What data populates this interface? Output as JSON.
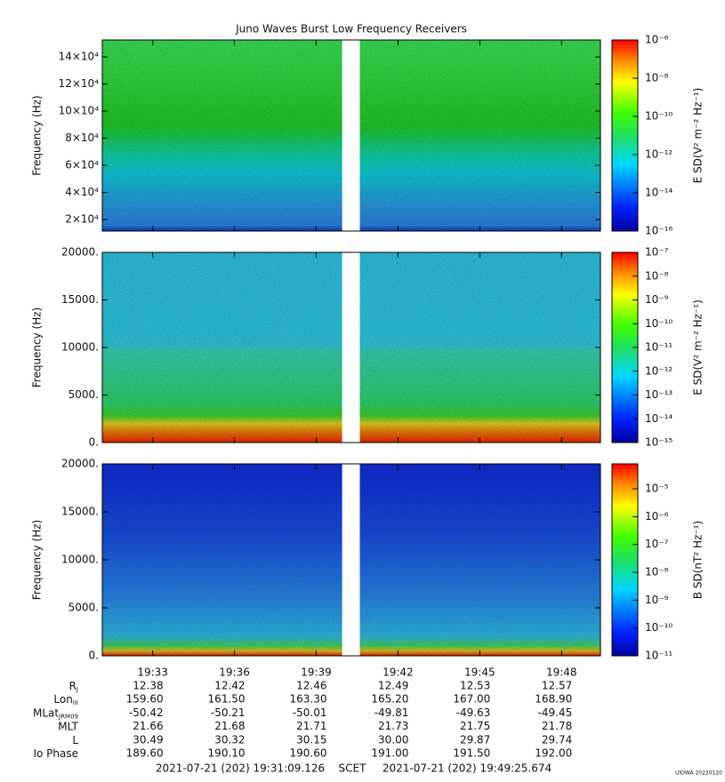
{
  "chart_data": {
    "type": "spectrogram",
    "title": "Juno Waves Burst Low Frequency Receivers",
    "xlim": [
      70269.126,
      71365.674
    ],
    "xticks": [
      {
        "value": 70380,
        "label": "19:33"
      },
      {
        "value": 70560,
        "label": "19:36"
      },
      {
        "value": 70740,
        "label": "19:39"
      },
      {
        "value": 70920,
        "label": "19:42"
      },
      {
        "value": 71100,
        "label": "19:45"
      },
      {
        "value": 71280,
        "label": "19:48"
      }
    ],
    "gap": [
      70797,
      70836
    ],
    "panels": [
      {
        "ylabel": "Frequency (Hz)",
        "ylim": [
          11500,
          152500
        ],
        "yticks": [
          {
            "value": 20000,
            "label": "2×10⁴"
          },
          {
            "value": 40000,
            "label": "4×10⁴"
          },
          {
            "value": 60000,
            "label": "6×10⁴"
          },
          {
            "value": 80000,
            "label": "8×10⁴"
          },
          {
            "value": 100000,
            "label": "10×10⁴"
          },
          {
            "value": 120000,
            "label": "12×10⁴"
          },
          {
            "value": 140000,
            "label": "14×10⁴"
          }
        ],
        "clabel": "E SD(V² m⁻² Hz⁻¹)",
        "clim": [
          1e-16,
          1e-06
        ],
        "clog": true,
        "cticks": [
          {
            "value": 1e-06,
            "label": "10⁻⁶"
          },
          {
            "value": 1e-08,
            "label": "10⁻⁸"
          },
          {
            "value": 1e-10,
            "label": "10⁻¹⁰"
          },
          {
            "value": 1e-12,
            "label": "10⁻¹²"
          },
          {
            "value": 1e-14,
            "label": "10⁻¹⁴"
          },
          {
            "value": 1e-16,
            "label": "10⁻¹⁶"
          }
        ]
      },
      {
        "ylabel": "Frequency (Hz)",
        "ylim": [
          0,
          20000
        ],
        "yticks": [
          {
            "value": 0,
            "label": "0."
          },
          {
            "value": 5000,
            "label": "5000."
          },
          {
            "value": 10000,
            "label": "10000."
          },
          {
            "value": 15000,
            "label": "15000."
          },
          {
            "value": 20000,
            "label": "20000."
          }
        ],
        "clabel": "E SD(V² m⁻² Hz⁻¹)",
        "clim": [
          1e-15,
          1e-07
        ],
        "clog": true,
        "cticks": [
          {
            "value": 1e-07,
            "label": "10⁻⁷"
          },
          {
            "value": 1e-08,
            "label": "10⁻⁸"
          },
          {
            "value": 1e-09,
            "label": "10⁻⁹"
          },
          {
            "value": 1e-10,
            "label": "10⁻¹⁰"
          },
          {
            "value": 1e-11,
            "label": "10⁻¹¹"
          },
          {
            "value": 1e-12,
            "label": "10⁻¹²"
          },
          {
            "value": 1e-13,
            "label": "10⁻¹³"
          },
          {
            "value": 1e-14,
            "label": "10⁻¹⁴"
          },
          {
            "value": 1e-15,
            "label": "10⁻¹⁵"
          }
        ]
      },
      {
        "ylabel": "Frequency (Hz)",
        "ylim": [
          0,
          20000
        ],
        "yticks": [
          {
            "value": 0,
            "label": "0."
          },
          {
            "value": 5000,
            "label": "5000."
          },
          {
            "value": 10000,
            "label": "10000."
          },
          {
            "value": 15000,
            "label": "15000."
          },
          {
            "value": 20000,
            "label": "20000."
          }
        ],
        "clabel": "B SD(nT² Hz⁻¹)",
        "clim": [
          1e-11,
          7.9e-05
        ],
        "clog": true,
        "cticks": [
          {
            "value": 1e-05,
            "label": "10⁻⁵"
          },
          {
            "value": 1e-06,
            "label": "10⁻⁶"
          },
          {
            "value": 1e-07,
            "label": "10⁻⁷"
          },
          {
            "value": 1e-08,
            "label": "10⁻⁸"
          },
          {
            "value": 1e-09,
            "label": "10⁻⁹"
          },
          {
            "value": 1e-10,
            "label": "10⁻¹⁰"
          },
          {
            "value": 1e-11,
            "label": "10⁻¹¹"
          }
        ]
      }
    ],
    "ephemeris": [
      {
        "label": "R",
        "sub": "J",
        "values": [
          "12.38",
          "12.42",
          "12.46",
          "12.49",
          "12.53",
          "12.57"
        ]
      },
      {
        "label": "Lon",
        "sub": "III",
        "values": [
          "159.60",
          "161.50",
          "163.30",
          "165.20",
          "167.00",
          "168.90"
        ]
      },
      {
        "label": "MLat",
        "sub": "JRM09",
        "values": [
          "-50.42",
          "-50.21",
          "-50.01",
          "-49.81",
          "-49.63",
          "-49.45"
        ]
      },
      {
        "label": "MLT",
        "values": [
          "21.66",
          "21.68",
          "21.71",
          "21.73",
          "21.75",
          "21.78"
        ]
      },
      {
        "label": "L",
        "values": [
          "30.49",
          "30.32",
          "30.15",
          "30.00",
          "29.87",
          "29.74"
        ]
      },
      {
        "label": "Io Phase",
        "values": [
          "189.60",
          "190.10",
          "190.60",
          "191.00",
          "191.50",
          "192.00"
        ]
      }
    ],
    "start": "2021-07-21 (202) 19:31:09.126",
    "timebase": "SCET",
    "end": "2021-07-21 (202) 19:49:25.674",
    "stamp": "UIOWA 20220120"
  }
}
